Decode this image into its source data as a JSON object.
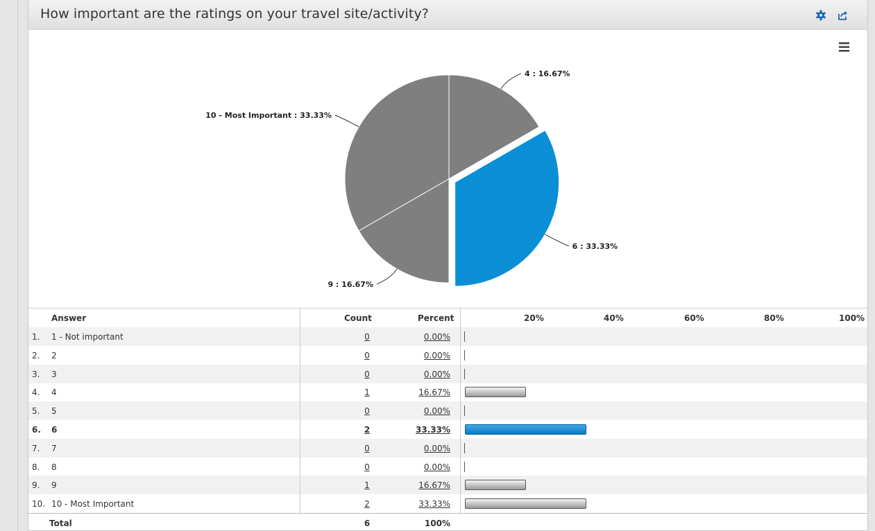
{
  "header": {
    "title": "How important are the ratings on your travel site/activity?"
  },
  "table": {
    "headers": {
      "answer": "Answer",
      "count": "Count",
      "percent": "Percent",
      "scale": [
        "20%",
        "40%",
        "60%",
        "80%",
        "100%"
      ]
    },
    "rows": [
      {
        "num": "1.",
        "answer": "1 - Not important",
        "count": "0",
        "percent": "0.00%",
        "value": 0,
        "highlight": false
      },
      {
        "num": "2.",
        "answer": "2",
        "count": "0",
        "percent": "0.00%",
        "value": 0,
        "highlight": false
      },
      {
        "num": "3.",
        "answer": "3",
        "count": "0",
        "percent": "0.00%",
        "value": 0,
        "highlight": false
      },
      {
        "num": "4.",
        "answer": "4",
        "count": "1",
        "percent": "16.67%",
        "value": 16.67,
        "highlight": false
      },
      {
        "num": "5.",
        "answer": "5",
        "count": "0",
        "percent": "0.00%",
        "value": 0,
        "highlight": false
      },
      {
        "num": "6.",
        "answer": "6",
        "count": "2",
        "percent": "33.33%",
        "value": 33.33,
        "highlight": true
      },
      {
        "num": "7.",
        "answer": "7",
        "count": "0",
        "percent": "0.00%",
        "value": 0,
        "highlight": false
      },
      {
        "num": "8.",
        "answer": "8",
        "count": "0",
        "percent": "0.00%",
        "value": 0,
        "highlight": false
      },
      {
        "num": "9.",
        "answer": "9",
        "count": "1",
        "percent": "16.67%",
        "value": 16.67,
        "highlight": false
      },
      {
        "num": "10.",
        "answer": "10 - Most Important",
        "count": "2",
        "percent": "33.33%",
        "value": 33.33,
        "highlight": false
      }
    ],
    "total": {
      "label": "Total",
      "count": "6",
      "percent": "100%"
    }
  },
  "colors": {
    "highlight": "#0a8fd6",
    "slice": "#7f7f7f"
  },
  "chart_data": [
    {
      "type": "pie",
      "slices": [
        {
          "label": "4 : 16.67%",
          "category": "4",
          "value": 16.67,
          "selected": false
        },
        {
          "label": "6 : 33.33%",
          "category": "6",
          "value": 33.33,
          "selected": true
        },
        {
          "label": "9 : 16.67%",
          "category": "9",
          "value": 16.67,
          "selected": false
        },
        {
          "label": "10 - Most Important : 33.33%",
          "category": "10 - Most Important",
          "value": 33.33,
          "selected": false
        }
      ]
    },
    {
      "type": "bar",
      "orientation": "horizontal",
      "categories": [
        "1 - Not important",
        "2",
        "3",
        "4",
        "5",
        "6",
        "7",
        "8",
        "9",
        "10 - Most Important"
      ],
      "values": [
        0,
        0,
        0,
        16.67,
        0,
        33.33,
        0,
        0,
        16.67,
        33.33
      ],
      "xlim": [
        0,
        100
      ],
      "xticks": [
        "20%",
        "40%",
        "60%",
        "80%",
        "100%"
      ]
    }
  ]
}
